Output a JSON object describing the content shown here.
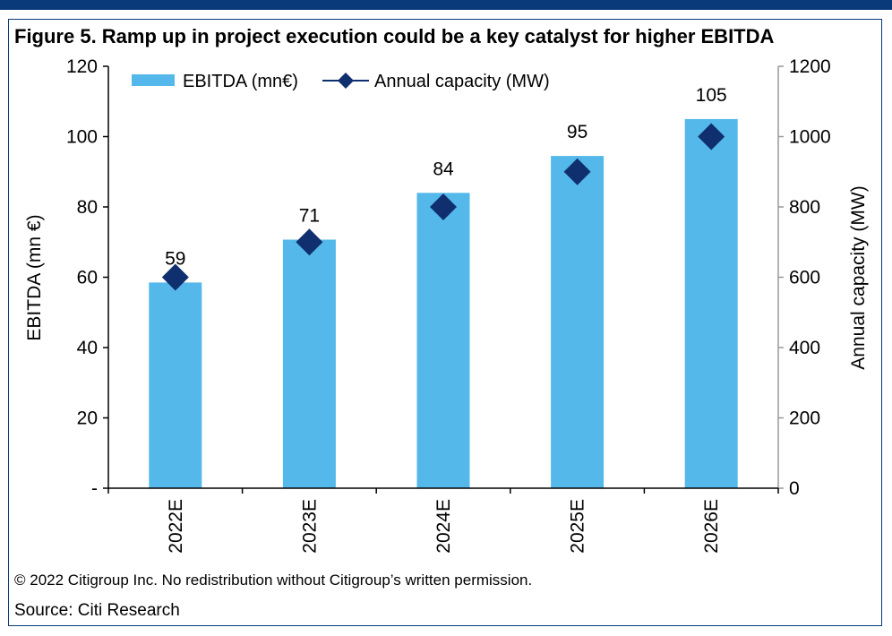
{
  "header": {
    "title": "Figure 5. Ramp up in project execution could be a key catalyst for higher EBITDA"
  },
  "footer": {
    "copyright": "© 2022 Citigroup Inc. No redistribution without Citigroup’s written permission.",
    "source": "Source: Citi Research"
  },
  "colors": {
    "bar": "#55b8ea",
    "marker": "#0f2f6e",
    "frame": "#0a3a7a"
  },
  "chart_data": {
    "type": "bar",
    "categories": [
      "2022E",
      "2023E",
      "2024E",
      "2025E",
      "2026E"
    ],
    "series": [
      {
        "name": "EBITDA (mn€)",
        "type": "bar",
        "axis": "left",
        "values": [
          58.5,
          70.7,
          84,
          94.5,
          105
        ],
        "data_labels": [
          "59",
          "71",
          "84",
          "95",
          "105"
        ]
      },
      {
        "name": "Annual capacity (MW)",
        "type": "scatter",
        "marker": "diamond",
        "axis": "right",
        "values": [
          600,
          700,
          800,
          900,
          1000
        ]
      }
    ],
    "ylabel": "EBITDA (mn €)",
    "y2label": "Annual capacity (MW)",
    "ylim": [
      0,
      120
    ],
    "y2lim": [
      0,
      1200
    ],
    "yticks": [
      "-",
      "20",
      "40",
      "60",
      "80",
      "100",
      "120"
    ],
    "y2ticks": [
      "0",
      "200",
      "400",
      "600",
      "800",
      "1000",
      "1200"
    ],
    "grid": false,
    "legend_position": "top-left"
  }
}
